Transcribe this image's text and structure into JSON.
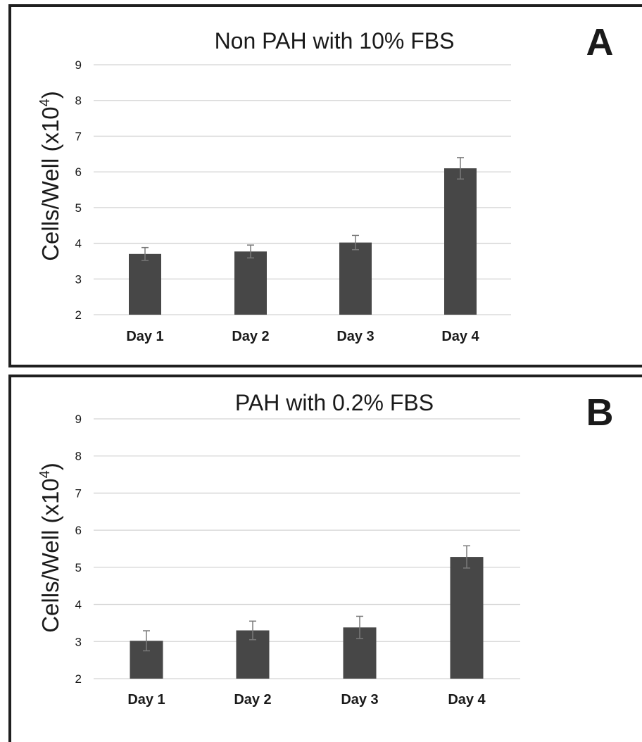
{
  "chart_data": [
    {
      "type": "bar",
      "panel_label": "A",
      "title": "Non PAH with 10% FBS",
      "ylabel": "Cells/Well (x10",
      "ylabel_sup": "4",
      "ylabel_close": ")",
      "xlabel": "",
      "categories": [
        "Day 1",
        "Day 2",
        "Day 3",
        "Day 4"
      ],
      "values": [
        3.7,
        3.77,
        4.02,
        6.1
      ],
      "errors": [
        0.18,
        0.18,
        0.2,
        0.3
      ],
      "ylim": [
        2,
        9
      ],
      "yticks": [
        "2",
        "3",
        "4",
        "5",
        "6",
        "7",
        "8",
        "9"
      ],
      "grid": true,
      "bar_color": "#474747"
    },
    {
      "type": "bar",
      "panel_label": "B",
      "title": "PAH with 0.2% FBS",
      "ylabel": "Cells/Well (x10",
      "ylabel_sup": "4",
      "ylabel_close": ")",
      "xlabel": "",
      "categories": [
        "Day 1",
        "Day 2",
        "Day 3",
        "Day 4"
      ],
      "values": [
        3.02,
        3.3,
        3.38,
        5.28
      ],
      "errors": [
        0.27,
        0.25,
        0.3,
        0.3
      ],
      "ylim": [
        2,
        9
      ],
      "yticks": [
        "2",
        "3",
        "4",
        "5",
        "6",
        "7",
        "8",
        "9"
      ],
      "grid": true,
      "bar_color": "#474747"
    }
  ]
}
